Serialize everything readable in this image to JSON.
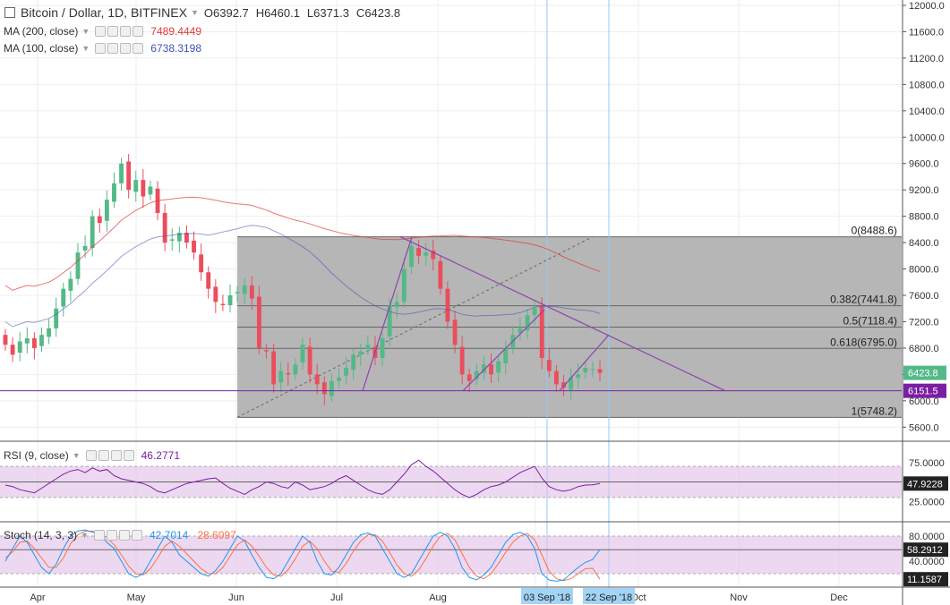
{
  "header": {
    "title": "Bitcoin / Dollar, 1D, BITFINEX",
    "ohlc": [
      {
        "k": "O",
        "v": "6392.7"
      },
      {
        "k": "H",
        "v": "6460.1"
      },
      {
        "k": "L",
        "v": "6371.3"
      },
      {
        "k": "C",
        "v": "6423.8"
      }
    ]
  },
  "indicators": {
    "ma200": {
      "label": "MA (200, close)",
      "value": "7489.4449",
      "color": "#e53935"
    },
    "ma100": {
      "label": "MA (100, close)",
      "value": "6738.3198",
      "color": "#3f51b5"
    },
    "rsi": {
      "label": "RSI (9, close)",
      "value": "46.2771",
      "color": "#7b1fa2",
      "current_label": "47.9228"
    },
    "stoch": {
      "label": "Stoch (14, 3, 3)",
      "k": "42.7014",
      "d": "28.6097",
      "k_color": "#2196f3",
      "d_color": "#ff7043",
      "current_k_label": "58.2912",
      "current_d_label": "11.1587"
    }
  },
  "colors": {
    "up": "#53b987",
    "down": "#eb4d5c",
    "fib_box": "#b2b2b2",
    "pattern": "#8e44ad",
    "support": "#7b1fa2",
    "grid": "#eeeeee"
  },
  "chart_data": [
    {
      "type": "candlestick",
      "title": "Bitcoin / Dollar, 1D, BITFINEX",
      "x_ticks": [
        "Apr",
        "May",
        "Jun",
        "Jul",
        "Aug",
        "Sep",
        "Oct",
        "Nov",
        "Dec"
      ],
      "x_highlights": [
        "03 Sep '18",
        "22 Sep '18"
      ],
      "ylim": [
        5400,
        12000
      ],
      "y_ticks": [
        "12000.0",
        "11600.0",
        "11200.0",
        "10800.0",
        "10400.0",
        "10000.0",
        "9600.0",
        "9200.0",
        "8800.0",
        "8400.0",
        "8000.0",
        "7600.0",
        "7200.0",
        "6800.0",
        "6400.0",
        "6000.0",
        "5600.0"
      ],
      "price_labels": [
        {
          "text": "6423.8",
          "value": 6423.8
        },
        {
          "text": "6151.5",
          "value": 6151.5
        }
      ],
      "fib_levels": [
        {
          "label": "0(8488.6)",
          "value": 8488.6
        },
        {
          "label": "0.382(7441.8)",
          "value": 7441.8
        },
        {
          "label": "0.5(7118.4)",
          "value": 7118.4
        },
        {
          "label": "0.618(6795.0)",
          "value": 6795.0
        },
        {
          "label": "1(5748.2)",
          "value": 5748.2
        }
      ],
      "support_line": 6151.5,
      "close_series": [
        6850,
        6700,
        6900,
        6950,
        6800,
        7000,
        7100,
        7400,
        7700,
        7850,
        8250,
        8350,
        8800,
        8700,
        9050,
        9300,
        9600,
        9200,
        9350,
        9100,
        9250,
        8850,
        8400,
        8450,
        8550,
        8400,
        8250,
        7950,
        7700,
        7500,
        7450,
        7600,
        7650,
        7750,
        7550,
        6800,
        6750,
        6250,
        6450,
        6400,
        6550,
        6850,
        6400,
        6250,
        6100,
        6300,
        6350,
        6500,
        6700,
        6750,
        6850,
        6650,
        6950,
        7450,
        7500,
        8000,
        8350,
        8200,
        8250,
        8150,
        7700,
        7200,
        6850,
        6400,
        6300,
        6450,
        6550,
        6400,
        6600,
        6800,
        7000,
        7100,
        7300,
        7400,
        6650,
        6450,
        6250,
        6200,
        6350,
        6400,
        6500,
        6480,
        6423.8
      ]
    },
    {
      "type": "line",
      "title": "RSI (9, close)",
      "ylim": [
        0,
        100
      ],
      "y_ticks": [
        "75.0000",
        "50.0000",
        "25.0000"
      ],
      "band": [
        30,
        70
      ],
      "series": [
        {
          "name": "RSI (9, close)",
          "values": [
            46,
            44,
            40,
            38,
            36,
            42,
            48,
            54,
            60,
            64,
            66,
            62,
            68,
            64,
            66,
            58,
            54,
            52,
            50,
            48,
            44,
            38,
            36,
            40,
            44,
            48,
            50,
            52,
            54,
            55,
            48,
            42,
            38,
            34,
            40,
            44,
            50,
            48,
            44,
            42,
            50,
            46,
            40,
            42,
            44,
            48,
            54,
            58,
            52,
            46,
            40,
            36,
            34,
            40,
            50,
            60,
            72,
            78,
            70,
            64,
            56,
            48,
            40,
            34,
            30,
            34,
            40,
            44,
            46,
            50,
            56,
            62,
            66,
            70,
            55,
            44,
            40,
            38,
            40,
            44,
            46,
            46.2771,
            47.9228
          ]
        }
      ]
    },
    {
      "type": "line",
      "title": "Stoch (14, 3, 3)",
      "ylim": [
        0,
        100
      ],
      "y_ticks": [
        "80.0000",
        "40.0000"
      ],
      "band": [
        20,
        80
      ],
      "series": [
        {
          "name": "K",
          "values": [
            40,
            60,
            80,
            70,
            50,
            30,
            20,
            35,
            60,
            80,
            88,
            90,
            86,
            84,
            70,
            60,
            40,
            20,
            14,
            20,
            40,
            60,
            80,
            70,
            50,
            40,
            30,
            20,
            16,
            25,
            40,
            60,
            80,
            72,
            50,
            30,
            14,
            12,
            20,
            40,
            60,
            80,
            70,
            40,
            20,
            18,
            30,
            50,
            70,
            82,
            85,
            80,
            60,
            40,
            20,
            14,
            20,
            40,
            60,
            80,
            86,
            80,
            60,
            30,
            14,
            10,
            18,
            30,
            50,
            70,
            82,
            86,
            80,
            60,
            20,
            10,
            8,
            10,
            20,
            30,
            38,
            42.7014,
            58.2912
          ]
        },
        {
          "name": "D",
          "values": [
            45,
            55,
            70,
            72,
            60,
            45,
            30,
            30,
            45,
            68,
            82,
            88,
            88,
            85,
            78,
            66,
            50,
            32,
            20,
            18,
            28,
            45,
            64,
            72,
            64,
            52,
            40,
            28,
            20,
            20,
            30,
            48,
            66,
            74,
            64,
            48,
            30,
            18,
            16,
            26,
            44,
            64,
            72,
            60,
            40,
            24,
            22,
            36,
            56,
            72,
            82,
            82,
            72,
            54,
            34,
            20,
            16,
            26,
            44,
            64,
            80,
            84,
            74,
            52,
            30,
            16,
            12,
            20,
            36,
            54,
            70,
            80,
            84,
            74,
            50,
            24,
            12,
            9,
            12,
            20,
            28,
            28.6097,
            11.1587
          ]
        }
      ]
    }
  ]
}
